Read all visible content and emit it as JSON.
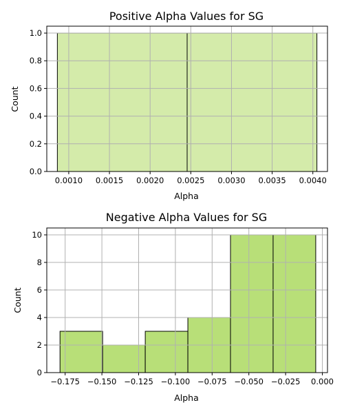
{
  "colors": {
    "top_fill": "#d4ebaa",
    "bottom_fill": "#b8df78",
    "edge": "#000000",
    "grid": "#b0b0b0"
  },
  "chart_data": [
    {
      "type": "bar",
      "title": "Positive Alpha Values for SG",
      "xlabel": "Alpha",
      "ylabel": "Count",
      "bins": [
        {
          "x0": 0.00086,
          "x1": 0.002455,
          "count": 1
        },
        {
          "x0": 0.002455,
          "x1": 0.00405,
          "count": 1
        }
      ],
      "xlim": [
        0.00073,
        0.00418
      ],
      "ylim": [
        0,
        1.05
      ],
      "xticks": [
        0.001,
        0.0015,
        0.002,
        0.0025,
        0.003,
        0.0035,
        0.004
      ],
      "xtick_labels": [
        "0.0010",
        "0.0015",
        "0.0020",
        "0.0025",
        "0.0030",
        "0.0035",
        "0.0040"
      ],
      "yticks": [
        0.0,
        0.2,
        0.4,
        0.6,
        0.8,
        1.0
      ],
      "ytick_labels": [
        "0.0",
        "0.2",
        "0.4",
        "0.6",
        "0.8",
        "1.0"
      ],
      "grid": true
    },
    {
      "type": "bar",
      "title": "Negative Alpha Values for SG",
      "xlabel": "Alpha",
      "ylabel": "Count",
      "bins": [
        {
          "x0": -0.1785,
          "x1": -0.1495,
          "count": 3
        },
        {
          "x0": -0.1495,
          "x1": -0.1205,
          "count": 2
        },
        {
          "x0": -0.1205,
          "x1": -0.0915,
          "count": 3
        },
        {
          "x0": -0.0915,
          "x1": -0.0625,
          "count": 4
        },
        {
          "x0": -0.0625,
          "x1": -0.0335,
          "count": 10
        },
        {
          "x0": -0.0335,
          "x1": -0.0045,
          "count": 10
        }
      ],
      "xlim": [
        -0.1875,
        0.0035
      ],
      "ylim": [
        0,
        10.5
      ],
      "xticks": [
        -0.175,
        -0.15,
        -0.125,
        -0.1,
        -0.075,
        -0.05,
        -0.025,
        0.0
      ],
      "xtick_labels": [
        "−0.175",
        "−0.150",
        "−0.125",
        "−0.100",
        "−0.075",
        "−0.050",
        "−0.025",
        "0.000"
      ],
      "yticks": [
        0,
        2,
        4,
        6,
        8,
        10
      ],
      "ytick_labels": [
        "0",
        "2",
        "4",
        "6",
        "8",
        "10"
      ],
      "grid": true
    }
  ]
}
